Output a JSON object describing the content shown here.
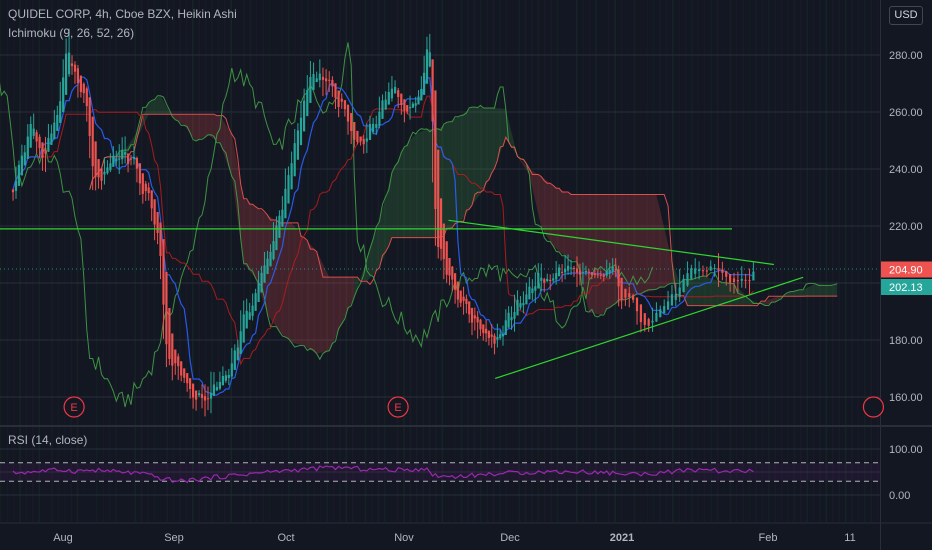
{
  "legend": {
    "main": "QUIDEL CORP, 4h, Cboe BZX, Heikin Ashi",
    "ichimoku": "Ichimoku (9, 26, 52, 26)",
    "rsi": "RSI (14, close)"
  },
  "currency_button": "USD",
  "colors": {
    "background": "#131722",
    "up": "#26a69a",
    "down": "#ef5350",
    "conversion": "#2962ff",
    "base": "#b71c1c",
    "lagging": "#43a047",
    "cloud_up": "#43a047",
    "cloud_down": "#ef5350",
    "trendline": "#2fd62f",
    "rsi": "#9c27b0",
    "last_price_bg": "#ef5350",
    "prev_price_bg": "#26a69a"
  },
  "chart_data": {
    "type": "candlestick",
    "symbol": "QUIDEL CORP",
    "interval": "4h",
    "exchange": "Cboe BZX",
    "style": "Heikin Ashi",
    "price_axis": {
      "range": [
        152,
        297
      ],
      "ticks": [
        "280.00",
        "260.00",
        "240.00",
        "220.00",
        "200.00",
        "180.00",
        "160.00"
      ]
    },
    "time_axis": {
      "labels": [
        "Aug",
        "Sep",
        "Oct",
        "Nov",
        "Dec",
        "2021",
        "Feb",
        "11"
      ]
    },
    "price_labels": [
      {
        "value": "204.90",
        "kind": "last"
      },
      {
        "value": "202.13",
        "kind": "previous"
      }
    ],
    "earnings_markers": [
      {
        "label": "E",
        "time": 0.1
      },
      {
        "label": "E",
        "time": 2.95
      },
      {
        "label": "",
        "time": 6.9
      }
    ],
    "price_path": [
      [
        -0.45,
        235
      ],
      [
        -0.3,
        255
      ],
      [
        -0.2,
        244
      ],
      [
        -0.05,
        260
      ],
      [
        0.02,
        285
      ],
      [
        0.05,
        275
      ],
      [
        0.15,
        268
      ],
      [
        0.22,
        258
      ],
      [
        0.25,
        240
      ],
      [
        0.3,
        235
      ],
      [
        0.45,
        245
      ],
      [
        0.6,
        244
      ],
      [
        0.72,
        232
      ],
      [
        0.8,
        226
      ],
      [
        0.86,
        210
      ],
      [
        0.92,
        175
      ],
      [
        1.0,
        172
      ],
      [
        1.1,
        165
      ],
      [
        1.2,
        158
      ],
      [
        1.3,
        160
      ],
      [
        1.4,
        165
      ],
      [
        1.5,
        172
      ],
      [
        1.6,
        185
      ],
      [
        1.7,
        195
      ],
      [
        1.8,
        205
      ],
      [
        1.9,
        220
      ],
      [
        2.0,
        235
      ],
      [
        2.1,
        255
      ],
      [
        2.2,
        275
      ],
      [
        2.35,
        270
      ],
      [
        2.5,
        258
      ],
      [
        2.6,
        245
      ],
      [
        2.75,
        258
      ],
      [
        2.9,
        268
      ],
      [
        3.05,
        260
      ],
      [
        3.15,
        270
      ],
      [
        3.22,
        285
      ],
      [
        3.25,
        275
      ],
      [
        3.28,
        220
      ],
      [
        3.35,
        210
      ],
      [
        3.5,
        195
      ],
      [
        3.7,
        185
      ],
      [
        3.85,
        180
      ],
      [
        4.0,
        188
      ],
      [
        4.15,
        198
      ],
      [
        4.35,
        203
      ],
      [
        4.55,
        205
      ],
      [
        4.75,
        200
      ],
      [
        4.9,
        205
      ],
      [
        5.0,
        195
      ],
      [
        5.15,
        187
      ],
      [
        5.3,
        193
      ],
      [
        5.45,
        202
      ],
      [
        5.6,
        206
      ],
      [
        5.72,
        202
      ],
      [
        5.8,
        199
      ],
      [
        5.9,
        205
      ]
    ],
    "horizontal_line": {
      "price": 219
    },
    "trendlines": [
      {
        "name": "upper",
        "from": [
          3.42,
          222
        ],
        "to": [
          6.05,
          206.5
        ]
      },
      {
        "name": "lower",
        "from": [
          3.86,
          166.5
        ],
        "to": [
          6.3,
          202
        ]
      }
    ],
    "rsi": {
      "range": [
        0,
        100
      ],
      "ticks": [
        "100.00",
        "0.00"
      ],
      "bands": [
        70,
        30
      ],
      "path": [
        [
          -0.45,
          48
        ],
        [
          0.0,
          55
        ],
        [
          0.1,
          52
        ],
        [
          0.3,
          54
        ],
        [
          0.5,
          50
        ],
        [
          0.7,
          47
        ],
        [
          0.9,
          35
        ],
        [
          1.05,
          30
        ],
        [
          1.2,
          34
        ],
        [
          1.5,
          42
        ],
        [
          1.8,
          49
        ],
        [
          2.1,
          55
        ],
        [
          2.4,
          60
        ],
        [
          2.7,
          56
        ],
        [
          3.0,
          54
        ],
        [
          3.2,
          58
        ],
        [
          3.27,
          44
        ],
        [
          3.4,
          40
        ],
        [
          3.6,
          42
        ],
        [
          3.85,
          46
        ],
        [
          4.1,
          49
        ],
        [
          4.4,
          51
        ],
        [
          4.7,
          50
        ],
        [
          4.9,
          48
        ],
        [
          5.1,
          45
        ],
        [
          5.4,
          52
        ],
        [
          5.6,
          55
        ],
        [
          5.75,
          50
        ],
        [
          5.9,
          53
        ]
      ]
    }
  }
}
